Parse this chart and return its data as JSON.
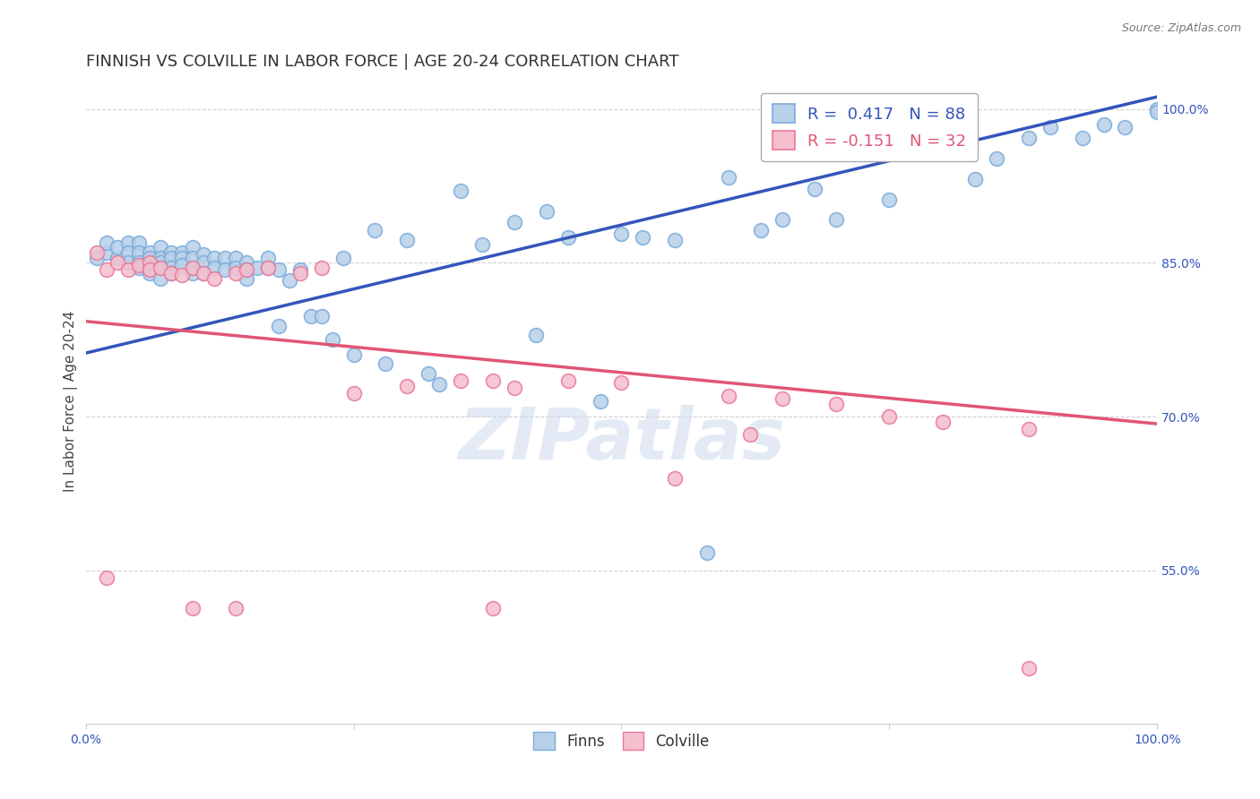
{
  "title": "FINNISH VS COLVILLE IN LABOR FORCE | AGE 20-24 CORRELATION CHART",
  "source_text": "Source: ZipAtlas.com",
  "ylabel": "In Labor Force | Age 20-24",
  "xlim": [
    0.0,
    1.0
  ],
  "ylim": [
    0.4,
    1.03
  ],
  "y_ticks": [
    0.55,
    0.7,
    0.85,
    1.0
  ],
  "y_tick_labels": [
    "55.0%",
    "70.0%",
    "85.0%",
    "100.0%"
  ],
  "x_tick_labels": [
    "0.0%",
    "",
    "",
    "",
    "100.0%"
  ],
  "grid_color": "#cccccc",
  "background_color": "#ffffff",
  "finns_color": "#b8d0e8",
  "finns_edge_color": "#7aaadd",
  "colville_color": "#f5bfce",
  "colville_edge_color": "#e87898",
  "finns_line_color": "#3355bb",
  "colville_line_color": "#e05575",
  "finns_R": 0.417,
  "finns_N": 88,
  "colville_R": -0.151,
  "colville_N": 32,
  "finns_trend_x": [
    0.0,
    1.0
  ],
  "finns_trend_y": [
    0.762,
    1.012
  ],
  "colville_trend_x": [
    0.0,
    1.0
  ],
  "colville_trend_y": [
    0.793,
    0.693
  ],
  "watermark": "ZIPatlas",
  "title_fontsize": 13,
  "axis_label_fontsize": 11,
  "tick_fontsize": 10,
  "legend_fontsize": 13,
  "finns_x": [
    0.01,
    0.02,
    0.02,
    0.03,
    0.03,
    0.04,
    0.04,
    0.04,
    0.05,
    0.05,
    0.05,
    0.05,
    0.06,
    0.06,
    0.06,
    0.06,
    0.07,
    0.07,
    0.07,
    0.07,
    0.07,
    0.08,
    0.08,
    0.08,
    0.08,
    0.09,
    0.09,
    0.09,
    0.1,
    0.1,
    0.1,
    0.1,
    0.11,
    0.11,
    0.11,
    0.12,
    0.12,
    0.13,
    0.13,
    0.14,
    0.14,
    0.15,
    0.15,
    0.15,
    0.16,
    0.17,
    0.17,
    0.18,
    0.18,
    0.19,
    0.2,
    0.21,
    0.22,
    0.23,
    0.24,
    0.25,
    0.27,
    0.28,
    0.3,
    0.32,
    0.33,
    0.35,
    0.37,
    0.4,
    0.42,
    0.43,
    0.45,
    0.48,
    0.5,
    0.52,
    0.55,
    0.58,
    0.6,
    0.63,
    0.65,
    0.68,
    0.7,
    0.75,
    0.8,
    0.83,
    0.85,
    0.88,
    0.9,
    0.93,
    0.95,
    0.97,
    1.0,
    1.0
  ],
  "finns_y": [
    0.855,
    0.86,
    0.87,
    0.855,
    0.865,
    0.87,
    0.86,
    0.85,
    0.87,
    0.86,
    0.85,
    0.845,
    0.86,
    0.855,
    0.845,
    0.84,
    0.865,
    0.855,
    0.85,
    0.845,
    0.835,
    0.86,
    0.855,
    0.845,
    0.84,
    0.86,
    0.855,
    0.848,
    0.865,
    0.855,
    0.845,
    0.84,
    0.858,
    0.85,
    0.84,
    0.855,
    0.845,
    0.855,
    0.843,
    0.855,
    0.845,
    0.85,
    0.843,
    0.835,
    0.845,
    0.855,
    0.845,
    0.843,
    0.788,
    0.833,
    0.843,
    0.798,
    0.798,
    0.775,
    0.855,
    0.76,
    0.882,
    0.752,
    0.872,
    0.742,
    0.732,
    0.92,
    0.868,
    0.89,
    0.78,
    0.9,
    0.875,
    0.715,
    0.878,
    0.875,
    0.872,
    0.567,
    0.933,
    0.882,
    0.892,
    0.922,
    0.892,
    0.912,
    0.962,
    0.932,
    0.952,
    0.972,
    0.982,
    0.972,
    0.985,
    0.982,
    1.0,
    0.997
  ],
  "colville_x": [
    0.01,
    0.02,
    0.03,
    0.04,
    0.05,
    0.06,
    0.06,
    0.07,
    0.08,
    0.09,
    0.1,
    0.11,
    0.12,
    0.14,
    0.15,
    0.17,
    0.2,
    0.22,
    0.25,
    0.3,
    0.35,
    0.38,
    0.4,
    0.45,
    0.5,
    0.55,
    0.6,
    0.65,
    0.7,
    0.75,
    0.8,
    0.88
  ],
  "colville_y": [
    0.86,
    0.843,
    0.85,
    0.843,
    0.848,
    0.85,
    0.843,
    0.845,
    0.84,
    0.838,
    0.845,
    0.84,
    0.835,
    0.84,
    0.843,
    0.845,
    0.84,
    0.845,
    0.723,
    0.73,
    0.735,
    0.735,
    0.728,
    0.735,
    0.733,
    0.64,
    0.72,
    0.718,
    0.712,
    0.7,
    0.695,
    0.688
  ],
  "colville_outliers_x": [
    0.02,
    0.1,
    0.14,
    0.38,
    0.62,
    0.88
  ],
  "colville_outliers_y": [
    0.543,
    0.513,
    0.513,
    0.513,
    0.683,
    0.455
  ]
}
